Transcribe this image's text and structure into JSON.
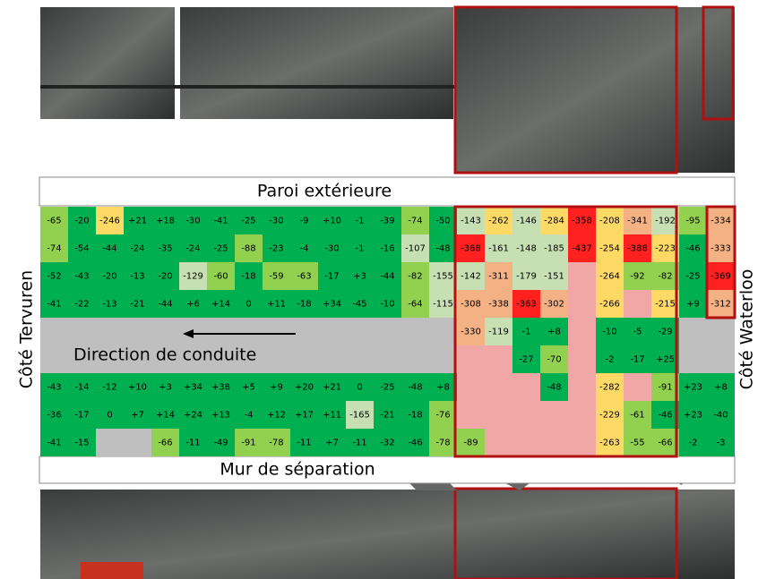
{
  "labels": {
    "top": "Paroi extérieure",
    "bottom": "Mur de séparation",
    "left": "Côté Tervuren",
    "right": "Côté Waterloo",
    "direction": "Direction de conduite"
  },
  "grid": {
    "rows": [
      [
        "-65",
        "-20",
        "-246",
        "+21",
        "+18",
        "-30",
        "-41",
        "-25",
        "-30",
        "-9",
        "+10",
        "-1",
        "-39",
        "-74",
        "-50",
        "-143",
        "-262",
        "-146",
        "-284",
        "-358",
        "-208",
        "-341",
        "-192",
        "-95",
        "-334"
      ],
      [
        "-74",
        "-54",
        "-44",
        "-24",
        "-35",
        "-24",
        "-25",
        "-88",
        "-23",
        "-4",
        "-30",
        "-1",
        "-16",
        "-107",
        "-48",
        "-368",
        "-161",
        "-148",
        "-185",
        "-437",
        "-254",
        "-388",
        "-223",
        "-46",
        "-333"
      ],
      [
        "-52",
        "-43",
        "-20",
        "-13",
        "-20",
        "-129",
        "-60",
        "-18",
        "-59",
        "-63",
        "-17",
        "+3",
        "-44",
        "-82",
        "-155",
        "-142",
        "-311",
        "-179",
        "-151",
        null,
        "-264",
        "-92",
        "-82",
        "-25",
        "-369"
      ],
      [
        "-41",
        "-22",
        "-13",
        "-21",
        "-44",
        "+6",
        "+14",
        "0",
        "+11",
        "-18",
        "+34",
        "-45",
        "-10",
        "-64",
        "-115",
        "-308",
        "-338",
        "-363",
        "-302",
        null,
        "-266",
        null,
        "-215",
        "+9",
        "-312"
      ],
      [
        null,
        null,
        null,
        null,
        null,
        null,
        null,
        null,
        null,
        null,
        null,
        null,
        null,
        null,
        null,
        "-330",
        "-119",
        "-1",
        "+8",
        null,
        "-10",
        "-5",
        "-29",
        null,
        null
      ],
      [
        null,
        null,
        null,
        null,
        null,
        null,
        null,
        null,
        null,
        null,
        null,
        null,
        null,
        null,
        null,
        null,
        null,
        "-27",
        "-70",
        null,
        "-2",
        "-17",
        "+25",
        null,
        null
      ],
      [
        "-43",
        "-14",
        "-12",
        "+10",
        "+3",
        "+34",
        "+38",
        "+5",
        "+9",
        "+20",
        "+21",
        "0",
        "-25",
        "-48",
        "+8",
        null,
        null,
        null,
        "-48",
        null,
        "-282",
        null,
        "-91",
        "+23",
        "+8"
      ],
      [
        "-36",
        "-17",
        "0",
        "+7",
        "+14",
        "+24",
        "+13",
        "-4",
        "+12",
        "+17",
        "+11",
        "-165",
        "-21",
        "-18",
        "-76",
        null,
        null,
        null,
        null,
        null,
        "-229",
        "-61",
        "-46",
        "+23",
        "-40"
      ],
      [
        "-41",
        "-15",
        null,
        null,
        "-66",
        "-11",
        "-49",
        "-91",
        "-78",
        "-11",
        "+7",
        "-11",
        "-32",
        "-46",
        "-78",
        "-89",
        null,
        null,
        null,
        null,
        "-263",
        "-55",
        "-66",
        "-2",
        "-3"
      ]
    ]
  }
}
